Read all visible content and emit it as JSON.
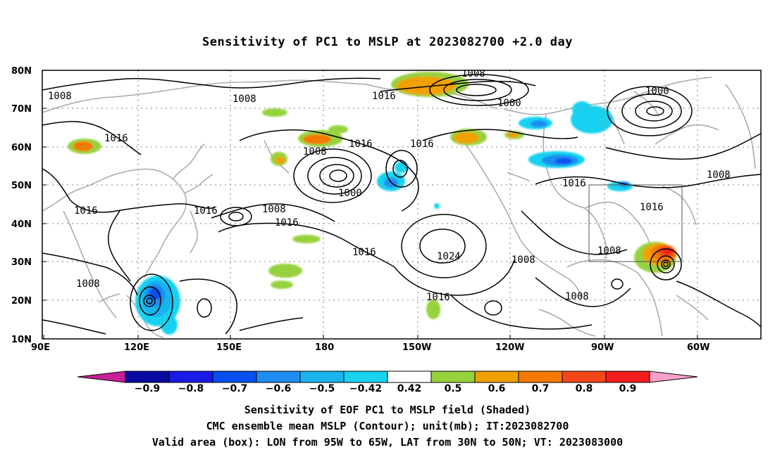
{
  "title": "Sensitivity of PC1 to MSLP at 2023082700 +2.0 day",
  "lat_labels": [
    "80N",
    "70N",
    "60N",
    "50N",
    "40N",
    "30N",
    "20N",
    "10N"
  ],
  "lon_labels": [
    "90E",
    "120E",
    "150E",
    "180",
    "150W",
    "120W",
    "90W",
    "60W"
  ],
  "contour_labels": [
    {
      "t": "1008"
    },
    {
      "t": "1008"
    },
    {
      "t": "1008"
    },
    {
      "t": "1016"
    },
    {
      "t": "1000"
    },
    {
      "t": "1016"
    },
    {
      "t": "1016"
    },
    {
      "t": "1016"
    },
    {
      "t": "1008"
    },
    {
      "t": "1000"
    },
    {
      "t": "1016"
    },
    {
      "t": "1016"
    },
    {
      "t": "1008"
    },
    {
      "t": "1016"
    },
    {
      "t": "1016"
    },
    {
      "t": "1024"
    },
    {
      "t": "1008"
    },
    {
      "t": "1008"
    },
    {
      "t": "1016"
    },
    {
      "t": "1016"
    },
    {
      "t": "1008"
    },
    {
      "t": "1008"
    },
    {
      "t": "1000"
    },
    {
      "t": "1016"
    }
  ],
  "colorbar": {
    "labels": [
      "−0.9",
      "−0.8",
      "−0.7",
      "−0.6",
      "−0.5",
      "−0.42",
      "0.42",
      "0.5",
      "0.6",
      "0.7",
      "0.8",
      "0.9"
    ],
    "colors": [
      "#0a0aa0",
      "#1a1ae6",
      "#0a50f0",
      "#1e8cf0",
      "#19b4f0",
      "#19d2f0",
      "#ffffff",
      "#96d23c",
      "#f0a000",
      "#f57800",
      "#f54618",
      "#f51e1e"
    ],
    "low_color": "#c81e96",
    "high_color": "#f5a0c8"
  },
  "captions": [
    "Sensitivity of EOF PC1 to MSLP field (Shaded)",
    "CMC ensemble mean MSLP (Contour); unit(mb); IT:2023082700",
    "Valid area (box): LON from 95W to 65W, LAT from 30N to 50N; VT: 2023083000"
  ]
}
